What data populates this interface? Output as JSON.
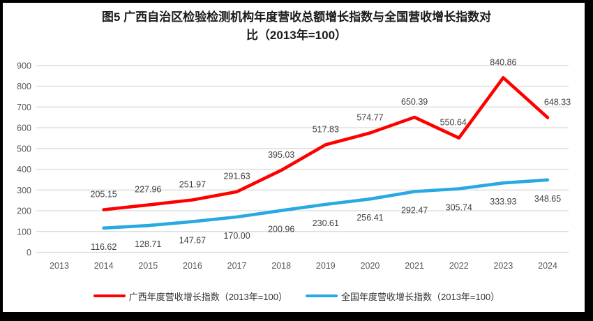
{
  "title_lines": [
    "图5  广西自治区检验检测机构年度营收总额增长指数与全国营收增长指数对",
    "比（2013年=100）"
  ],
  "colors": {
    "guangxi_line": "#FF0000",
    "national_line": "#29A9E1",
    "gridline": "#D9D9D9",
    "tick_text": "#595959",
    "data_label_text": "#404040",
    "frame_border": "#000000"
  },
  "chart_data": {
    "type": "line",
    "categories": [
      "2013",
      "2014",
      "2015",
      "2016",
      "2017",
      "2018",
      "2019",
      "2020",
      "2021",
      "2022",
      "2023",
      "2024"
    ],
    "series": [
      {
        "name": "广西年度营收增长指数（2013年=100）",
        "color": "#FF0000",
        "values": [
          null,
          205.15,
          227.96,
          251.97,
          291.63,
          395.03,
          517.83,
          574.77,
          650.39,
          550.64,
          840.86,
          648.33
        ],
        "label_position": "above",
        "label_dx": [
          0,
          0,
          0,
          0,
          0,
          0,
          0,
          0,
          0,
          -8,
          0,
          14
        ]
      },
      {
        "name": "全国年度营收增长指数（2013年=100）",
        "color": "#29A9E1",
        "values": [
          null,
          116.62,
          128.71,
          147.67,
          170.0,
          200.96,
          230.61,
          256.41,
          292.47,
          305.74,
          333.93,
          348.65
        ],
        "label_position": "below",
        "label_dx": [
          0,
          0,
          0,
          0,
          0,
          0,
          0,
          0,
          0,
          0,
          0,
          0
        ]
      }
    ],
    "title": "图5 广西自治区检验检测机构年度营收总额增长指数与全国营收增长指数对比（2013年=100）",
    "xlabel": "",
    "ylabel": "",
    "ylim": [
      0,
      900
    ],
    "yticks": [
      0,
      100,
      200,
      300,
      400,
      500,
      600,
      700,
      800,
      900
    ],
    "grid": true,
    "legend_position": "bottom"
  }
}
